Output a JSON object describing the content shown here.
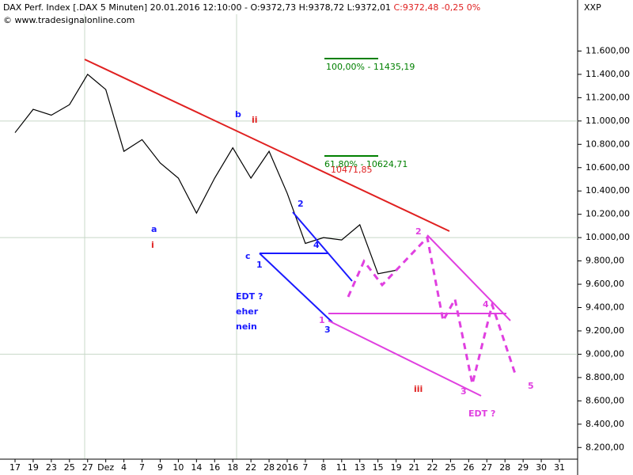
{
  "chart_data": {
    "type": "line",
    "title": "DAX Perf. Index [.DAX  5 Minuten] 20.01.2016 12:10:00 - O:9372,73 H:9378,72 L:9372,01",
    "title_change": "C:9372,48 -0,25 0%",
    "source": "© www.tradesignalonline.com",
    "y_axis_label": "XXP",
    "categories": [
      "17",
      "19",
      "23",
      "25",
      "27",
      "Dez",
      "4",
      "7",
      "9",
      "10",
      "14",
      "16",
      "18",
      "22",
      "28",
      "2016",
      "7",
      "8",
      "11",
      "13",
      "15",
      "19",
      "21",
      "22",
      "25",
      "26",
      "27",
      "28",
      "29",
      "30",
      "31"
    ],
    "series": [
      {
        "name": "DAX",
        "color": "#000000",
        "values": [
          10900,
          11100,
          11050,
          11140,
          11400,
          11270,
          10740,
          10840,
          10640,
          10510,
          10210,
          10510,
          10770,
          10510,
          10740,
          10380,
          9950,
          10000,
          9980,
          10110,
          9690,
          9720,
          null,
          null,
          null,
          null,
          null,
          null,
          null,
          null,
          null
        ]
      }
    ],
    "ylim": [
      8100,
      11800
    ],
    "yticks": [
      {
        "value": 8200,
        "label": "8.200,00"
      },
      {
        "value": 8400,
        "label": "8.400,00"
      },
      {
        "value": 8600,
        "label": "8.600,00"
      },
      {
        "value": 8800,
        "label": "8.800,00"
      },
      {
        "value": 9000,
        "label": "9.000,00"
      },
      {
        "value": 9200,
        "label": "9.200,00"
      },
      {
        "value": 9400,
        "label": "9.400,00"
      },
      {
        "value": 9600,
        "label": "9.600,00"
      },
      {
        "value": 9800,
        "label": "9.800,00"
      },
      {
        "value": 10000,
        "label": "10.000,00"
      },
      {
        "value": 10200,
        "label": "10.200,00"
      },
      {
        "value": 10400,
        "label": "10.400,00"
      },
      {
        "value": 10600,
        "label": "10.600,00"
      },
      {
        "value": 10800,
        "label": "10.800,00"
      },
      {
        "value": 11000,
        "label": "11.000,00"
      },
      {
        "value": 11200,
        "label": "11.200,00"
      },
      {
        "value": 11400,
        "label": "11.400,00"
      },
      {
        "value": 11600,
        "label": "11.600,00"
      }
    ],
    "gridlines": [
      9000,
      10000,
      11000
    ],
    "annotations": [
      "b",
      "ii",
      "a",
      "i",
      "c",
      "1",
      "2",
      "4",
      "3",
      "1",
      "EDT ?",
      "eher",
      "nein",
      "2",
      "4",
      "3",
      "5",
      "iii",
      "EDT ?",
      "100,00% - 11435,19",
      "61,80% - 10624,71",
      "10471,85"
    ]
  }
}
